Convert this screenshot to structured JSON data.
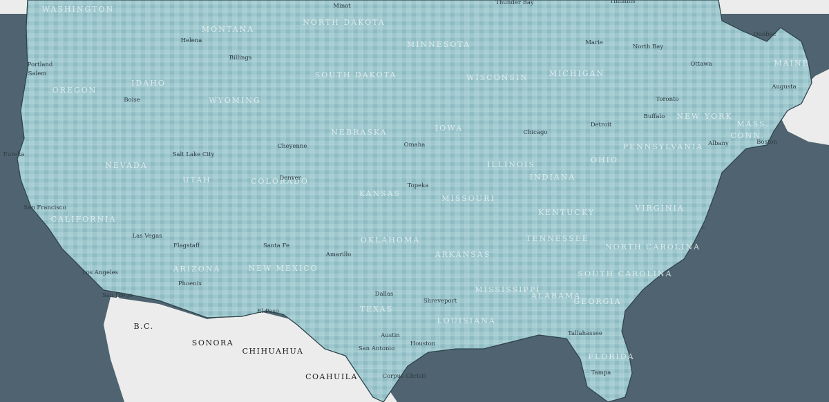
{
  "map": {
    "colors": {
      "ocean": "#4f6470",
      "lakes": "#56707c",
      "land_foreign": "#ececec",
      "us_base": "#9ec7cd",
      "choropleth": [
        "#cfe6e9",
        "#b7dadf",
        "#9ec9cf",
        "#86bbc2",
        "#6fa9b2",
        "#5b9aa3",
        "#3f8089"
      ],
      "border": "#2e444c"
    },
    "state_labels": [
      "WASHINGTON",
      "MONTANA",
      "NORTH DAKOTA",
      "MINNESOTA",
      "OREGON",
      "IDAHO",
      "WYOMING",
      "SOUTH DAKOTA",
      "WISCONSIN",
      "MICHIGAN",
      "NEBRASKA",
      "IOWA",
      "NEVADA",
      "UTAH",
      "COLORADO",
      "ILLINOIS",
      "INDIANA",
      "OHIO",
      "PENNSYLVANIA",
      "NEW YORK",
      "MAINE",
      "MASS.",
      "CONN.",
      "CALIFORNIA",
      "KANSAS",
      "MISSOURI",
      "KENTUCKY",
      "VIRGINIA",
      "TENNESSEE",
      "NORTH CAROLINA",
      "OKLAHOMA",
      "ARKANSAS",
      "ARIZONA",
      "NEW MEXICO",
      "SOUTH CAROLINA",
      "MISSISSIPPI",
      "ALABAMA",
      "GEORGIA",
      "TEXAS",
      "LOUISIANA",
      "FLORIDA"
    ],
    "region_labels": [
      "SONORA",
      "CHIHUAHUA",
      "COAHUILA",
      "B.C."
    ],
    "city_labels": [
      "Thunder Bay",
      "Timmins",
      "Marie",
      "North Bay",
      "Quebec",
      "Ottawa",
      "Toronto",
      "Buffalo",
      "Detroit",
      "Chicago",
      "Minot",
      "Helena",
      "Billings",
      "Portland",
      "Salem",
      "Boise",
      "Eureka",
      "San Francisco",
      "Las Vegas",
      "Los Angeles",
      "San Diego",
      "Salt Lake City",
      "Cheyenne",
      "Denver",
      "Omaha",
      "Topeka",
      "Flagstaff",
      "Phoenix",
      "Santa Fe",
      "Amarillo",
      "El Paso",
      "Dallas",
      "Shreveport",
      "Austin",
      "San Antonio",
      "Houston",
      "Corpus Christi",
      "Tallahassee",
      "Tampa",
      "Augusta",
      "Albany",
      "Boston"
    ]
  }
}
